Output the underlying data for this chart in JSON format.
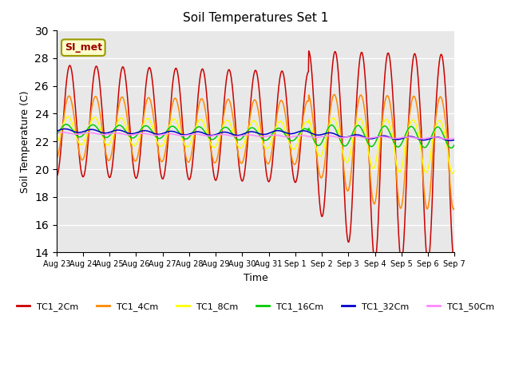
{
  "title": "Soil Temperatures Set 1",
  "xlabel": "Time",
  "ylabel": "Soil Temperature (C)",
  "ylim": [
    14,
    30
  ],
  "background_color": "#e8e8e8",
  "annotation_text": "SI_met",
  "annotation_bg": "#ffffcc",
  "annotation_border": "#999900",
  "x_tick_labels": [
    "Aug 23",
    "Aug 24",
    "Aug 25",
    "Aug 26",
    "Aug 27",
    "Aug 28",
    "Aug 29",
    "Aug 30",
    "Aug 31",
    "Sep 1",
    "Sep 2",
    "Sep 3",
    "Sep 4",
    "Sep 5",
    "Sep 6",
    "Sep 7"
  ],
  "series_colors": {
    "TC1_2Cm": "#cc0000",
    "TC1_4Cm": "#ff8800",
    "TC1_8Cm": "#ffff00",
    "TC1_16Cm": "#00cc00",
    "TC1_32Cm": "#0000cc",
    "TC1_50Cm": "#ff88ff"
  },
  "legend_labels": [
    "TC1_2Cm",
    "TC1_4Cm",
    "TC1_8Cm",
    "TC1_16Cm",
    "TC1_32Cm",
    "TC1_50Cm"
  ]
}
